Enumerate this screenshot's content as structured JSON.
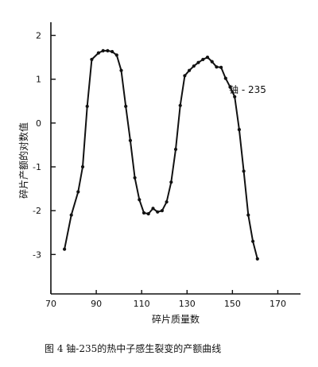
{
  "chart_data": {
    "type": "line",
    "title": "",
    "caption": "图 4   铀-235的热中子感生裂变的产额曲线",
    "xlabel": "碎片质量数",
    "ylabel": "碎片产额的对数值",
    "xlim": [
      70,
      180
    ],
    "ylim": [
      -3.9,
      2.3
    ],
    "x_ticks": [
      "70",
      "90",
      "110",
      "130",
      "150",
      "170"
    ],
    "x_tick_values": [
      70,
      90,
      110,
      130,
      150,
      170
    ],
    "y_ticks": [
      "2",
      "1",
      "0",
      "-1",
      "-2",
      "-3"
    ],
    "y_tick_values": [
      2,
      1,
      0,
      -1,
      -2,
      -3
    ],
    "grid": false,
    "annotation": "铀 - 235",
    "series": [
      {
        "x": [
          76,
          79,
          82,
          84,
          86,
          88,
          91,
          93,
          95,
          97,
          99,
          101,
          103,
          105,
          107,
          109,
          111,
          113,
          115,
          117,
          119,
          121,
          123,
          125,
          127,
          129,
          131,
          133,
          135,
          137,
          139,
          141,
          143,
          145,
          147,
          149,
          151,
          153,
          155,
          157,
          159,
          161
        ],
        "y": [
          -2.88,
          -2.1,
          -1.57,
          -1.0,
          0.38,
          1.45,
          1.6,
          1.65,
          1.65,
          1.63,
          1.55,
          1.2,
          0.38,
          -0.4,
          -1.25,
          -1.75,
          -2.05,
          -2.07,
          -1.95,
          -2.03,
          -2.0,
          -1.8,
          -1.35,
          -0.6,
          0.4,
          1.08,
          1.2,
          1.3,
          1.38,
          1.45,
          1.5,
          1.4,
          1.28,
          1.27,
          1.02,
          0.82,
          0.6,
          -0.15,
          -1.1,
          -2.1,
          -2.7,
          -3.1
        ]
      }
    ]
  }
}
